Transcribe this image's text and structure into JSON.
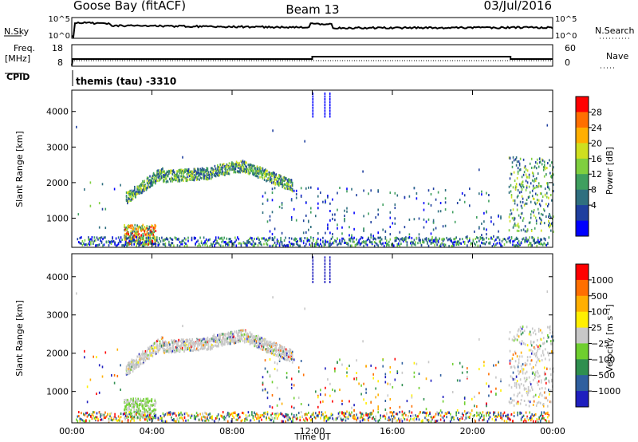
{
  "header": {
    "station": "Goose Bay (fitACF)",
    "beam": "Beam 13",
    "date": "03/Jul/2016"
  },
  "noise_panel": {
    "left_label": "N.Sky",
    "right_label": "N.Search",
    "ticks": [
      "10^5",
      "10^0"
    ],
    "right_ticks": [
      "10^5",
      "10^0"
    ]
  },
  "freq_panel": {
    "left_label_line1": "Freq.",
    "left_label_line2": "[MHz]",
    "left_ticks": [
      "18",
      "8"
    ],
    "right_label": "Nave",
    "right_ticks": [
      "60",
      "0"
    ]
  },
  "cpid": {
    "label": "CPID",
    "value": "themis (tau) -3310"
  },
  "colors": {
    "power": [
      "#0000ff",
      "#1f3f9f",
      "#2f6f7f",
      "#3f9f5f",
      "#7fcf3f",
      "#cfdf1f",
      "#ffaf00",
      "#ff6f00",
      "#ff0000"
    ],
    "velocity": [
      "#1f1fbf",
      "#2f5f9f",
      "#2f8f4f",
      "#6fcf2f",
      "#c8c8c8",
      "#ffef00",
      "#ffaf00",
      "#ff6f00",
      "#ff0000"
    ]
  },
  "chart_data": [
    {
      "type": "heatmap",
      "name": "power",
      "ylabel": "Slant Range [km]",
      "yticks": [
        1000,
        2000,
        3000,
        4000
      ],
      "ylim": [
        180,
        4600
      ],
      "xlim": [
        0,
        24
      ],
      "xticks": [
        "00:00",
        "04:00",
        "08:00",
        "12:00",
        "16:00",
        "20:00",
        "00:00"
      ],
      "colorbar_label": "Power [dB]",
      "colorbar_ticks": [
        "28",
        "24",
        "20",
        "16",
        "12",
        "8",
        "4"
      ],
      "regions": [
        {
          "t0": 2.6,
          "t1": 4.8,
          "r0": 1500,
          "r1": 2300,
          "band": "arc"
        },
        {
          "t0": 4.2,
          "t1": 7.0,
          "r0": 2000,
          "r1": 2450,
          "band": "arc"
        },
        {
          "t0": 7.0,
          "t1": 11.0,
          "r0": 1800,
          "r1": 2550,
          "band": "arc"
        },
        {
          "t0": 2.7,
          "t1": 4.2,
          "r0": 200,
          "r1": 800,
          "band": "near"
        },
        {
          "t0": 0.1,
          "t1": 23.9,
          "r0": 180,
          "r1": 400,
          "band": "floor"
        },
        {
          "t0": 12.5,
          "t1": 20.0,
          "r0": 400,
          "r1": 1800,
          "band": "sparse"
        },
        {
          "t0": 21.8,
          "t1": 24.0,
          "r0": 500,
          "r1": 2600,
          "band": "edge"
        },
        {
          "t0": 11.9,
          "t1": 12.9,
          "r0": 3800,
          "r1": 4550,
          "band": "spike"
        }
      ]
    },
    {
      "type": "heatmap",
      "name": "velocity",
      "ylabel": "Slant Range [km]",
      "yticks": [
        1000,
        2000,
        3000,
        4000
      ],
      "ylim": [
        180,
        4600
      ],
      "xlim": [
        0,
        24
      ],
      "xticks": [
        "00:00",
        "04:00",
        "08:00",
        "12:00",
        "16:00",
        "20:00",
        "00:00"
      ],
      "xlabel": "Time UT",
      "colorbar_label": "Velocity [m s⁻¹]",
      "colorbar_ticks": [
        "1000",
        "500",
        "100",
        "25",
        "−25",
        "−100",
        "−500",
        "−1000"
      ]
    }
  ]
}
